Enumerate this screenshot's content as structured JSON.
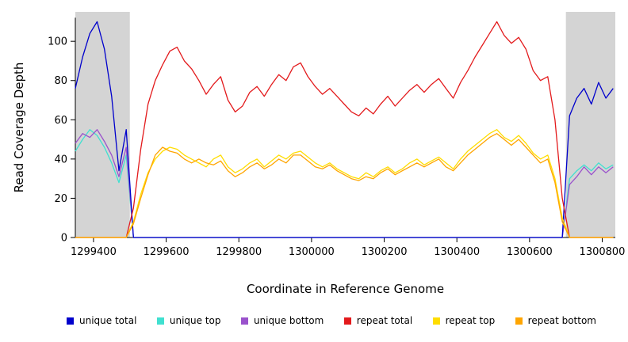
{
  "chart_data": {
    "type": "line",
    "title": "",
    "xlabel": "Coordinate in Reference Genome",
    "ylabel": "Read Coverage Depth",
    "xlim": [
      1299350,
      1300836
    ],
    "ylim": [
      0,
      115
    ],
    "x_ticks": [
      1299400,
      1299600,
      1299800,
      1300000,
      1300200,
      1300400,
      1300600,
      1300800
    ],
    "y_ticks": [
      0,
      20,
      40,
      60,
      80,
      100
    ],
    "grid": false,
    "legend_position": "bottom",
    "shaded_regions": [
      {
        "x0": 1299350,
        "x1": 1299500,
        "color": "#d4d4d4"
      },
      {
        "x0": 1300700,
        "x1": 1300836,
        "color": "#d4d4d4"
      }
    ],
    "draw_order": [
      1,
      2,
      0,
      3,
      4,
      5
    ],
    "x": [
      1299350,
      1299370,
      1299390,
      1299410,
      1299430,
      1299450,
      1299470,
      1299490,
      1299510,
      1299530,
      1299550,
      1299570,
      1299590,
      1299610,
      1299630,
      1299650,
      1299670,
      1299690,
      1299710,
      1299730,
      1299750,
      1299770,
      1299790,
      1299810,
      1299830,
      1299850,
      1299870,
      1299890,
      1299910,
      1299930,
      1299950,
      1299970,
      1299990,
      1300010,
      1300030,
      1300050,
      1300070,
      1300090,
      1300110,
      1300130,
      1300150,
      1300170,
      1300190,
      1300210,
      1300230,
      1300250,
      1300270,
      1300290,
      1300310,
      1300330,
      1300350,
      1300370,
      1300390,
      1300410,
      1300430,
      1300450,
      1300470,
      1300490,
      1300510,
      1300530,
      1300550,
      1300570,
      1300590,
      1300610,
      1300630,
      1300650,
      1300670,
      1300690,
      1300710,
      1300730,
      1300750,
      1300770,
      1300790,
      1300810,
      1300830
    ],
    "series": [
      {
        "name": "unique total",
        "color": "#0000cc",
        "values": [
          76,
          92,
          104,
          110,
          96,
          72,
          34,
          55,
          0,
          0,
          0,
          0,
          0,
          0,
          0,
          0,
          0,
          0,
          0,
          0,
          0,
          0,
          0,
          0,
          0,
          0,
          0,
          0,
          0,
          0,
          0,
          0,
          0,
          0,
          0,
          0,
          0,
          0,
          0,
          0,
          0,
          0,
          0,
          0,
          0,
          0,
          0,
          0,
          0,
          0,
          0,
          0,
          0,
          0,
          0,
          0,
          0,
          0,
          0,
          0,
          0,
          0,
          0,
          0,
          0,
          0,
          0,
          0,
          62,
          71,
          76,
          68,
          79,
          71,
          76
        ]
      },
      {
        "name": "unique top",
        "color": "#40e0d0",
        "values": [
          44,
          50,
          55,
          52,
          46,
          38,
          28,
          42,
          0,
          0,
          0,
          0,
          0,
          0,
          0,
          0,
          0,
          0,
          0,
          0,
          0,
          0,
          0,
          0,
          0,
          0,
          0,
          0,
          0,
          0,
          0,
          0,
          0,
          0,
          0,
          0,
          0,
          0,
          0,
          0,
          0,
          0,
          0,
          0,
          0,
          0,
          0,
          0,
          0,
          0,
          0,
          0,
          0,
          0,
          0,
          0,
          0,
          0,
          0,
          0,
          0,
          0,
          0,
          0,
          0,
          0,
          0,
          0,
          30,
          34,
          37,
          34,
          38,
          35,
          37
        ]
      },
      {
        "name": "unique bottom",
        "color": "#9a52cc",
        "values": [
          48,
          53,
          51,
          55,
          49,
          42,
          31,
          46,
          0,
          0,
          0,
          0,
          0,
          0,
          0,
          0,
          0,
          0,
          0,
          0,
          0,
          0,
          0,
          0,
          0,
          0,
          0,
          0,
          0,
          0,
          0,
          0,
          0,
          0,
          0,
          0,
          0,
          0,
          0,
          0,
          0,
          0,
          0,
          0,
          0,
          0,
          0,
          0,
          0,
          0,
          0,
          0,
          0,
          0,
          0,
          0,
          0,
          0,
          0,
          0,
          0,
          0,
          0,
          0,
          0,
          0,
          0,
          0,
          27,
          31,
          36,
          32,
          36,
          33,
          36
        ]
      },
      {
        "name": "repeat total",
        "color": "#e31a1c",
        "values": [
          0,
          0,
          0,
          0,
          0,
          0,
          0,
          0,
          15,
          45,
          68,
          80,
          88,
          95,
          97,
          90,
          86,
          80,
          73,
          78,
          82,
          70,
          64,
          67,
          74,
          77,
          72,
          78,
          83,
          80,
          87,
          89,
          82,
          77,
          73,
          76,
          72,
          68,
          64,
          62,
          66,
          63,
          68,
          72,
          67,
          71,
          75,
          78,
          74,
          78,
          81,
          76,
          71,
          79,
          85,
          92,
          98,
          104,
          110,
          103,
          99,
          102,
          96,
          85,
          80,
          82,
          60,
          20,
          0,
          0,
          0,
          0,
          0,
          0,
          0
        ]
      },
      {
        "name": "repeat top",
        "color": "#ffdd00",
        "values": [
          0,
          0,
          0,
          0,
          0,
          0,
          0,
          0,
          8,
          22,
          33,
          40,
          44,
          46,
          45,
          42,
          40,
          38,
          36,
          40,
          42,
          36,
          33,
          35,
          38,
          40,
          36,
          39,
          42,
          40,
          43,
          44,
          41,
          38,
          36,
          38,
          35,
          33,
          31,
          30,
          33,
          31,
          34,
          36,
          33,
          35,
          38,
          40,
          37,
          39,
          41,
          38,
          35,
          40,
          44,
          47,
          50,
          53,
          55,
          51,
          49,
          52,
          48,
          43,
          40,
          42,
          30,
          10,
          0,
          0,
          0,
          0,
          0,
          0,
          0
        ]
      },
      {
        "name": "repeat bottom",
        "color": "#ffa500",
        "values": [
          0,
          0,
          0,
          0,
          0,
          0,
          0,
          0,
          7,
          20,
          32,
          42,
          46,
          44,
          43,
          40,
          38,
          40,
          38,
          37,
          39,
          34,
          31,
          33,
          36,
          38,
          35,
          37,
          40,
          38,
          42,
          42,
          39,
          36,
          35,
          37,
          34,
          32,
          30,
          29,
          31,
          30,
          33,
          35,
          32,
          34,
          36,
          38,
          36,
          38,
          40,
          36,
          34,
          38,
          42,
          45,
          48,
          51,
          53,
          50,
          47,
          50,
          46,
          42,
          38,
          40,
          28,
          8,
          0,
          0,
          0,
          0,
          0,
          0,
          0
        ]
      }
    ],
    "axis_color": "#000000",
    "tick_label_font_px": 13
  }
}
